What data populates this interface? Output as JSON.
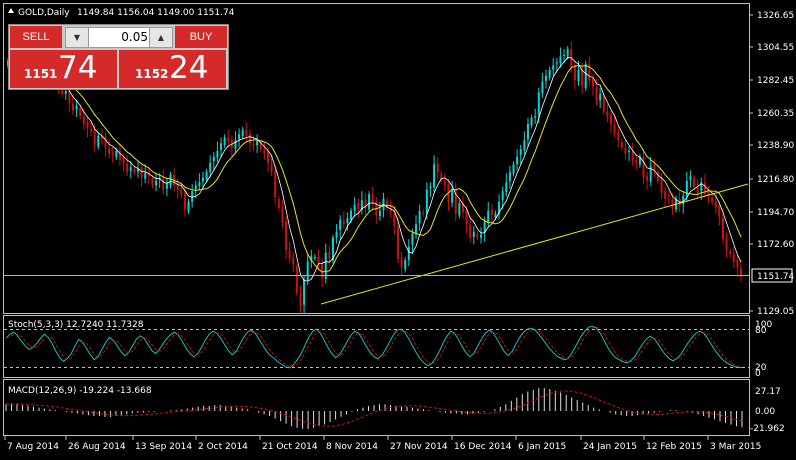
{
  "header": {
    "title": "GOLD,Daily",
    "ohlc": "1149.84 1156.04 1149.00 1151.74"
  },
  "trade_panel": {
    "sell_label": "SELL",
    "buy_label": "BUY",
    "lot_value": "0.05",
    "bid_small": "1151",
    "bid_big": "74",
    "ask_small": "1152",
    "ask_big": "24"
  },
  "price_axis": {
    "labels": [
      "1326.65",
      "1304.55",
      "1282.45",
      "1260.35",
      "1238.90",
      "1216.80",
      "1194.70",
      "1172.60",
      "1129.05"
    ],
    "current_price": "1151.74"
  },
  "stoch": {
    "label": "Stoch(5,3,3) 12.7240 11.7328",
    "levels": [
      "100",
      "80",
      "20",
      "0"
    ]
  },
  "macd": {
    "label": "MACD(12,26,9) -19.224 -13.668",
    "levels": [
      "27.17",
      "0.00",
      "-21.962"
    ]
  },
  "time_axis": {
    "labels": [
      "7 Aug 2014",
      "26 Aug 2014",
      "13 Sep 2014",
      "2 Oct 2014",
      "21 Oct 2014",
      "8 Nov 2014",
      "27 Nov 2014",
      "16 Dec 2014",
      "6 Jan 2015",
      "24 Jan 2015",
      "12 Feb 2015",
      "3 Mar 2015"
    ]
  },
  "colors": {
    "bull": "#00d8d8",
    "bear": "#d01010",
    "ma_fast": "#ffffff",
    "ma_slow": "#e8e800",
    "trendline": "#e8e800",
    "grid": "#c0c0c0"
  },
  "chart_data": {
    "type": "candlestick",
    "symbol": "GOLD",
    "timeframe": "Daily",
    "price_range": [
      1129.05,
      1326.65
    ],
    "closes": [
      1296,
      1300,
      1298,
      1306,
      1303,
      1300,
      1292,
      1290,
      1285,
      1289,
      1286,
      1282,
      1287,
      1283,
      1279,
      1274,
      1276,
      1268,
      1263,
      1266,
      1259,
      1254,
      1251,
      1249,
      1240,
      1246,
      1244,
      1238,
      1234,
      1233,
      1236,
      1230,
      1228,
      1222,
      1225,
      1222,
      1224,
      1218,
      1221,
      1219,
      1213,
      1216,
      1218,
      1210,
      1214,
      1220,
      1213,
      1210,
      1207,
      1197,
      1202,
      1209,
      1213,
      1215,
      1218,
      1222,
      1228,
      1232,
      1236,
      1241,
      1245,
      1242,
      1238,
      1243,
      1247,
      1250,
      1246,
      1241,
      1239,
      1243,
      1237,
      1234,
      1228,
      1222,
      1205,
      1198,
      1188,
      1170,
      1164,
      1160,
      1141,
      1132,
      1150,
      1162,
      1166,
      1165,
      1160,
      1151,
      1168,
      1164,
      1178,
      1182,
      1190,
      1187,
      1191,
      1196,
      1200,
      1197,
      1203,
      1198,
      1207,
      1201,
      1193,
      1196,
      1204,
      1198,
      1195,
      1186,
      1164,
      1158,
      1163,
      1172,
      1181,
      1187,
      1196,
      1194,
      1210,
      1212,
      1227,
      1222,
      1216,
      1213,
      1202,
      1210,
      1194,
      1201,
      1195,
      1187,
      1178,
      1182,
      1178,
      1180,
      1189,
      1196,
      1193,
      1194,
      1202,
      1209,
      1215,
      1222,
      1227,
      1232,
      1237,
      1243,
      1254,
      1258,
      1259,
      1275,
      1282,
      1286,
      1290,
      1293,
      1295,
      1299,
      1300,
      1304,
      1292,
      1283,
      1290,
      1279,
      1294,
      1283,
      1279,
      1269,
      1274,
      1262,
      1259,
      1254,
      1248,
      1243,
      1238,
      1234,
      1236,
      1229,
      1228,
      1232,
      1218,
      1216,
      1226,
      1223,
      1216,
      1208,
      1204,
      1203,
      1198,
      1204,
      1199,
      1206,
      1216,
      1219,
      1212,
      1208,
      1215,
      1208,
      1206,
      1202,
      1198,
      1192,
      1177,
      1170,
      1167,
      1162,
      1158,
      1151.74
    ],
    "moving_averages": [
      "fast",
      "slow"
    ],
    "trendline": {
      "from": [
        "8 Nov 2014",
        1132
      ],
      "to": [
        "3 Mar 2015",
        1214
      ]
    },
    "stoch": [
      70,
      78,
      82,
      75,
      65,
      55,
      48,
      52,
      60,
      70,
      78,
      72,
      60,
      45,
      32,
      25,
      30,
      40,
      55,
      68,
      62,
      50,
      38,
      28,
      34,
      48,
      62,
      72,
      66,
      55,
      44,
      36,
      42,
      55,
      68,
      75,
      70,
      58,
      46,
      40,
      48,
      60,
      70,
      78,
      82,
      76,
      64,
      50,
      40,
      34,
      40,
      52,
      66,
      78,
      84,
      80,
      70,
      58,
      46,
      38,
      44,
      58,
      72,
      82,
      86,
      80,
      68,
      56,
      44,
      36,
      30,
      24,
      18,
      14,
      12,
      18,
      28,
      40,
      56,
      72,
      84,
      88,
      80,
      66,
      52,
      40,
      32,
      38,
      50,
      64,
      76,
      84,
      80,
      68,
      54,
      42,
      34,
      30,
      36,
      48,
      62,
      76,
      86,
      88,
      82,
      70,
      56,
      42,
      30,
      22,
      16,
      20,
      30,
      44,
      60,
      74,
      84,
      80,
      68,
      54,
      42,
      34,
      40,
      54,
      68,
      80,
      86,
      82,
      70,
      56,
      44,
      36,
      44,
      58,
      72,
      82,
      88,
      90,
      86,
      78,
      68,
      58,
      48,
      40,
      34,
      30,
      28,
      34,
      46,
      60,
      74,
      84,
      92,
      94,
      90,
      80,
      66,
      52,
      40,
      32,
      28,
      24,
      22,
      26,
      34,
      46,
      58,
      68,
      74,
      70,
      60,
      48,
      38,
      30,
      26,
      30,
      38,
      50,
      62,
      72,
      80,
      84,
      80,
      70,
      58,
      46,
      36,
      28,
      22,
      18,
      15,
      13,
      12.72
    ],
    "macd_hist": [
      8,
      9,
      8,
      7,
      6,
      5,
      4,
      3,
      2,
      1,
      0,
      -1,
      -2,
      -3,
      -4,
      -5,
      -6,
      -6,
      -7,
      -7,
      -6,
      -5,
      -4,
      -3,
      -2,
      -2,
      -1,
      -1,
      0,
      0,
      1,
      1,
      2,
      3,
      4,
      5,
      6,
      6,
      7,
      7,
      6,
      5,
      4,
      3,
      2,
      0,
      -2,
      -4,
      -6,
      -9,
      -12,
      -15,
      -18,
      -20,
      -21,
      -21,
      -20,
      -18,
      -16,
      -13,
      -10,
      -7,
      -4,
      -1,
      2,
      4,
      6,
      7,
      8,
      8,
      7,
      6,
      5,
      5,
      4,
      3,
      2,
      1,
      0,
      -1,
      -2,
      -3,
      -3,
      -4,
      -4,
      -3,
      -2,
      -1,
      0,
      2,
      5,
      8,
      12,
      16,
      20,
      23,
      25,
      27,
      27,
      26,
      24,
      22,
      19,
      16,
      13,
      10,
      7,
      4,
      2,
      0,
      -2,
      -4,
      -5,
      -6,
      -6,
      -5,
      -4,
      -3,
      -2,
      -1,
      0,
      1,
      1,
      0,
      -1,
      -2,
      -4,
      -6,
      -8,
      -10,
      -12,
      -14,
      -16,
      -18,
      -19.22
    ]
  }
}
